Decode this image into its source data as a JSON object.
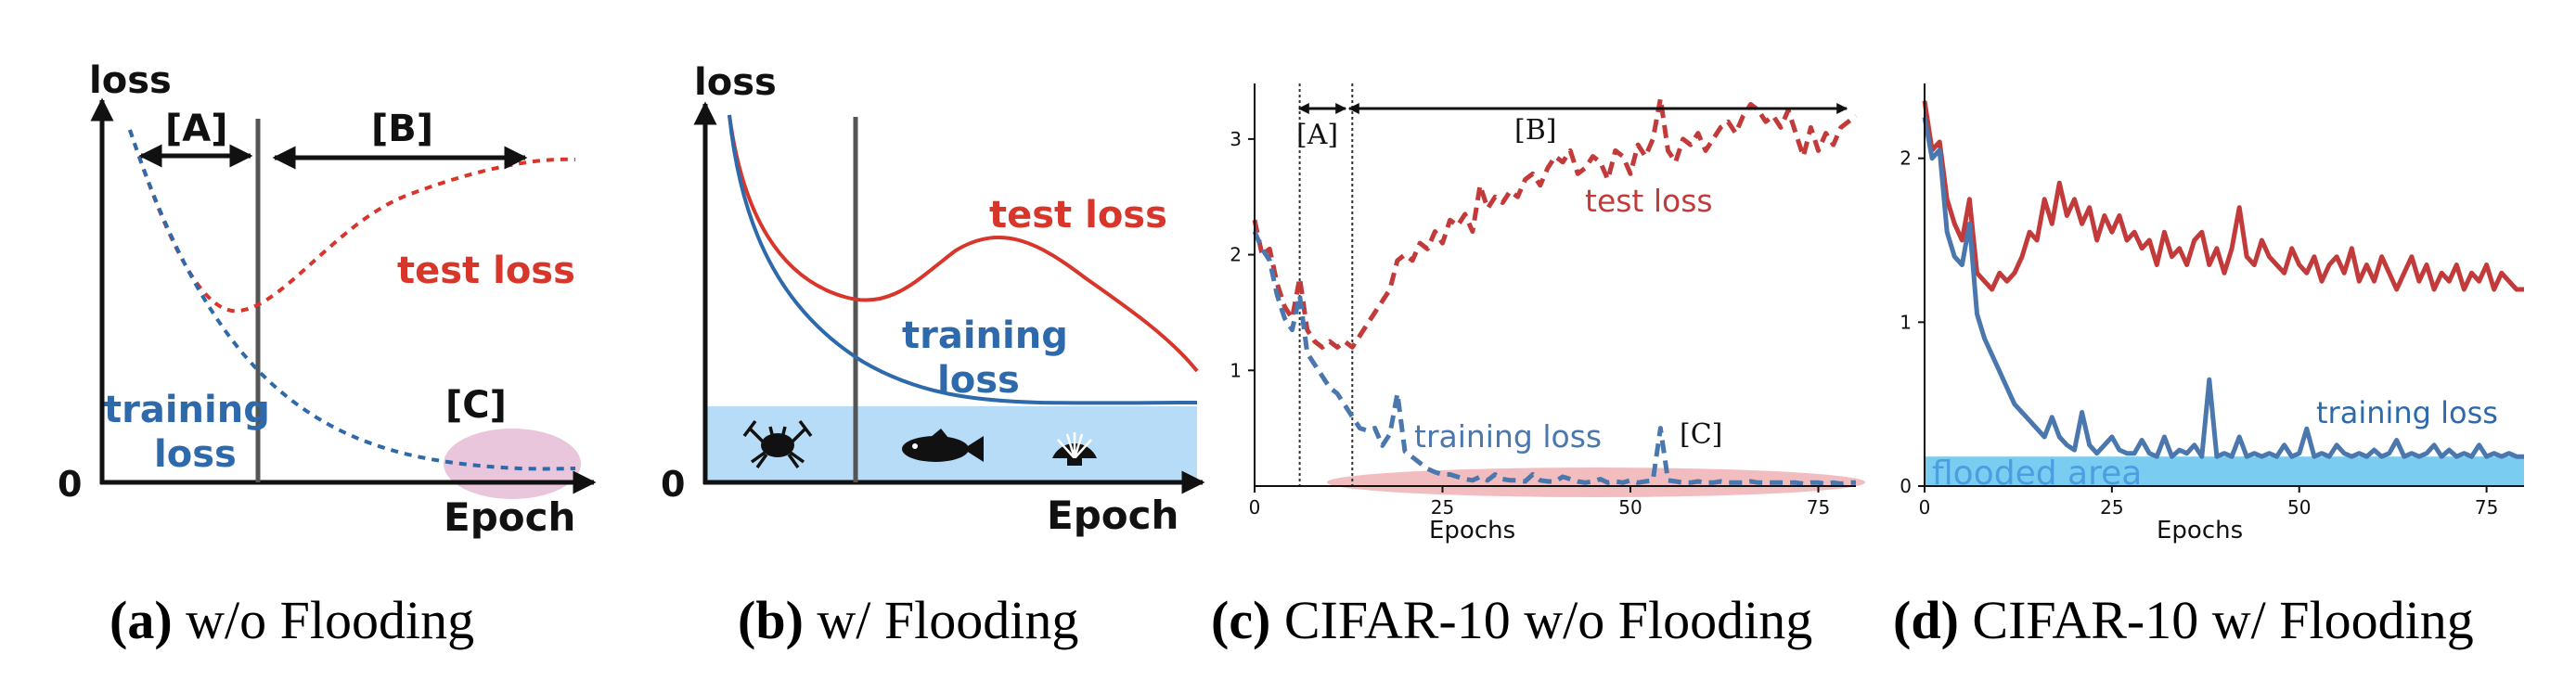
{
  "captions": [
    {
      "letter": "(a)",
      "text": " w/o Flooding"
    },
    {
      "letter": "(b)",
      "text": " w/ Flooding"
    },
    {
      "letter": "(c)",
      "text": " CIFAR-10 w/o Flooding"
    },
    {
      "letter": "(d)",
      "text": " CIFAR-10 w/ Flooding"
    }
  ],
  "colors": {
    "train": "#2e6aab",
    "test": "#d8362b",
    "flood": "#b7dcf7",
    "flood_d": "#6cc7ef",
    "c_train": "#4a77ad",
    "c_test": "#c23a3a",
    "pink": "#f0b6b8",
    "lilac": "#e5bcd6",
    "axis": "#111111",
    "vline": "#555555"
  },
  "panel_a": {
    "ylabel": "loss",
    "xlabel": "Epoch",
    "zero": "0",
    "region_a": "[A]",
    "region_b": "[B]",
    "region_c": "[C]",
    "test_label": "test loss",
    "train_label_1": "training",
    "train_label_2": "loss"
  },
  "panel_b": {
    "ylabel": "loss",
    "xlabel": "Epoch",
    "zero": "0",
    "test_label": "test loss",
    "train_label_1": "training",
    "train_label_2": "loss",
    "icons": [
      "crab-icon",
      "fish-icon",
      "shell-icon"
    ]
  },
  "chart_data": [
    {
      "type": "line",
      "title": "CIFAR-10 w/o Flooding",
      "xlabel": "Epochs",
      "ylabel": "",
      "xlim": [
        0,
        80
      ],
      "ylim": [
        0,
        3.4
      ],
      "xticks": [
        0,
        25,
        50,
        75
      ],
      "yticks": [
        1,
        2,
        3
      ],
      "vlines": [
        6,
        13
      ],
      "annotations": [
        "[A]",
        "[B]",
        "[C]"
      ],
      "series": [
        {
          "name": "test loss",
          "style": "dashed",
          "x": [
            0,
            1,
            2,
            3,
            4,
            5,
            6,
            7,
            8,
            9,
            10,
            11,
            12,
            13,
            14,
            15,
            16,
            17,
            18,
            19,
            20,
            21,
            22,
            23,
            24,
            25,
            26,
            27,
            28,
            29,
            30,
            31,
            32,
            33,
            34,
            35,
            36,
            37,
            38,
            39,
            40,
            41,
            42,
            43,
            44,
            45,
            46,
            47,
            48,
            49,
            50,
            51,
            52,
            53,
            54,
            55,
            56,
            57,
            58,
            59,
            60,
            61,
            62,
            63,
            64,
            65,
            66,
            67,
            68,
            69,
            70,
            71,
            72,
            73,
            74,
            75,
            76,
            77,
            78,
            79,
            80
          ],
          "y": [
            2.3,
            2.0,
            2.05,
            1.75,
            1.55,
            1.45,
            1.8,
            1.35,
            1.25,
            1.2,
            1.25,
            1.2,
            1.25,
            1.2,
            1.3,
            1.4,
            1.5,
            1.6,
            1.7,
            1.95,
            2.0,
            1.95,
            2.1,
            2.05,
            2.2,
            2.1,
            2.3,
            2.25,
            2.35,
            2.2,
            2.6,
            2.4,
            2.5,
            2.45,
            2.55,
            2.5,
            2.65,
            2.7,
            2.6,
            2.75,
            2.85,
            2.8,
            2.9,
            2.7,
            2.75,
            2.85,
            2.8,
            2.65,
            2.9,
            2.85,
            2.7,
            2.95,
            2.85,
            3.0,
            3.35,
            2.9,
            2.8,
            3.0,
            2.95,
            3.05,
            2.9,
            3.0,
            3.1,
            3.15,
            3.05,
            3.2,
            3.3,
            3.25,
            3.15,
            3.2,
            3.1,
            3.25,
            3.05,
            2.85,
            3.1,
            2.9,
            3.05,
            2.95,
            3.1,
            3.15,
            3.2
          ]
        },
        {
          "name": "training loss",
          "style": "dashed",
          "x": [
            0,
            1,
            2,
            3,
            4,
            5,
            6,
            7,
            8,
            9,
            10,
            11,
            12,
            13,
            14,
            15,
            16,
            17,
            18,
            19,
            20,
            21,
            22,
            23,
            24,
            25,
            26,
            27,
            28,
            29,
            30,
            31,
            32,
            33,
            34,
            35,
            36,
            37,
            38,
            39,
            40,
            41,
            42,
            43,
            44,
            45,
            46,
            47,
            48,
            49,
            50,
            51,
            52,
            53,
            54,
            55,
            56,
            57,
            58,
            59,
            60,
            61,
            62,
            63,
            64,
            65,
            66,
            67,
            68,
            69,
            70,
            71,
            72,
            73,
            74,
            75,
            76,
            77,
            78,
            79,
            80
          ],
          "y": [
            2.2,
            2.05,
            1.95,
            1.65,
            1.45,
            1.35,
            1.65,
            1.15,
            1.05,
            0.95,
            0.85,
            0.8,
            0.7,
            0.6,
            0.5,
            0.48,
            0.5,
            0.35,
            0.45,
            0.8,
            0.3,
            0.25,
            0.2,
            0.15,
            0.12,
            0.1,
            0.1,
            0.08,
            0.06,
            0.05,
            0.08,
            0.05,
            0.1,
            0.06,
            0.05,
            0.05,
            0.04,
            0.1,
            0.05,
            0.04,
            0.04,
            0.08,
            0.06,
            0.04,
            0.03,
            0.04,
            0.06,
            0.03,
            0.04,
            0.03,
            0.05,
            0.03,
            0.04,
            0.05,
            0.5,
            0.05,
            0.04,
            0.03,
            0.03,
            0.04,
            0.03,
            0.03,
            0.04,
            0.03,
            0.03,
            0.03,
            0.04,
            0.03,
            0.03,
            0.03,
            0.03,
            0.03,
            0.03,
            0.02,
            0.03,
            0.03,
            0.02,
            0.03,
            0.02,
            0.03,
            0.03
          ]
        }
      ],
      "labels": {
        "test": "test loss",
        "train": "training loss"
      }
    },
    {
      "type": "line",
      "title": "CIFAR-10 w/ Flooding",
      "xlabel": "Epochs",
      "ylabel": "",
      "xlim": [
        0,
        80
      ],
      "ylim": [
        0,
        2.4
      ],
      "xticks": [
        0,
        25,
        50,
        75
      ],
      "yticks": [
        0,
        1,
        2
      ],
      "flood_level": 0.18,
      "flood_label": "flooded area",
      "series": [
        {
          "name": "test loss",
          "style": "solid",
          "x": [
            0,
            1,
            2,
            3,
            4,
            5,
            6,
            7,
            8,
            9,
            10,
            11,
            12,
            13,
            14,
            15,
            16,
            17,
            18,
            19,
            20,
            21,
            22,
            23,
            24,
            25,
            26,
            27,
            28,
            29,
            30,
            31,
            32,
            33,
            34,
            35,
            36,
            37,
            38,
            39,
            40,
            41,
            42,
            43,
            44,
            45,
            46,
            47,
            48,
            49,
            50,
            51,
            52,
            53,
            54,
            55,
            56,
            57,
            58,
            59,
            60,
            61,
            62,
            63,
            64,
            65,
            66,
            67,
            68,
            69,
            70,
            71,
            72,
            73,
            74,
            75,
            76,
            77,
            78,
            79,
            80
          ],
          "y": [
            2.35,
            2.05,
            2.1,
            1.75,
            1.6,
            1.5,
            1.75,
            1.3,
            1.25,
            1.2,
            1.3,
            1.25,
            1.3,
            1.4,
            1.55,
            1.5,
            1.75,
            1.6,
            1.85,
            1.65,
            1.75,
            1.6,
            1.7,
            1.5,
            1.65,
            1.55,
            1.65,
            1.5,
            1.55,
            1.45,
            1.5,
            1.35,
            1.55,
            1.4,
            1.45,
            1.35,
            1.5,
            1.55,
            1.35,
            1.45,
            1.3,
            1.45,
            1.7,
            1.4,
            1.35,
            1.5,
            1.4,
            1.35,
            1.3,
            1.45,
            1.35,
            1.3,
            1.4,
            1.25,
            1.35,
            1.4,
            1.3,
            1.45,
            1.25,
            1.35,
            1.25,
            1.4,
            1.3,
            1.2,
            1.3,
            1.4,
            1.25,
            1.35,
            1.2,
            1.3,
            1.25,
            1.35,
            1.2,
            1.3,
            1.25,
            1.35,
            1.2,
            1.3,
            1.25,
            1.2,
            1.2
          ]
        },
        {
          "name": "training loss",
          "style": "solid",
          "x": [
            0,
            1,
            2,
            3,
            4,
            5,
            6,
            7,
            8,
            9,
            10,
            11,
            12,
            13,
            14,
            15,
            16,
            17,
            18,
            19,
            20,
            21,
            22,
            23,
            24,
            25,
            26,
            27,
            28,
            29,
            30,
            31,
            32,
            33,
            34,
            35,
            36,
            37,
            38,
            39,
            40,
            41,
            42,
            43,
            44,
            45,
            46,
            47,
            48,
            49,
            50,
            51,
            52,
            53,
            54,
            55,
            56,
            57,
            58,
            59,
            60,
            61,
            62,
            63,
            64,
            65,
            66,
            67,
            68,
            69,
            70,
            71,
            72,
            73,
            74,
            75,
            76,
            77,
            78,
            79,
            80
          ],
          "y": [
            2.25,
            2.0,
            2.05,
            1.55,
            1.4,
            1.35,
            1.6,
            1.05,
            0.9,
            0.8,
            0.7,
            0.6,
            0.5,
            0.45,
            0.4,
            0.35,
            0.3,
            0.42,
            0.3,
            0.25,
            0.22,
            0.45,
            0.25,
            0.2,
            0.25,
            0.3,
            0.22,
            0.2,
            0.2,
            0.28,
            0.2,
            0.18,
            0.3,
            0.18,
            0.22,
            0.2,
            0.25,
            0.18,
            0.65,
            0.18,
            0.2,
            0.18,
            0.3,
            0.18,
            0.2,
            0.18,
            0.2,
            0.18,
            0.25,
            0.18,
            0.2,
            0.35,
            0.18,
            0.2,
            0.18,
            0.25,
            0.2,
            0.18,
            0.2,
            0.18,
            0.22,
            0.18,
            0.2,
            0.28,
            0.18,
            0.2,
            0.18,
            0.2,
            0.25,
            0.18,
            0.22,
            0.18,
            0.2,
            0.18,
            0.25,
            0.18,
            0.2,
            0.18,
            0.2,
            0.18,
            0.18
          ]
        }
      ],
      "labels": {
        "train": "training loss"
      }
    }
  ]
}
